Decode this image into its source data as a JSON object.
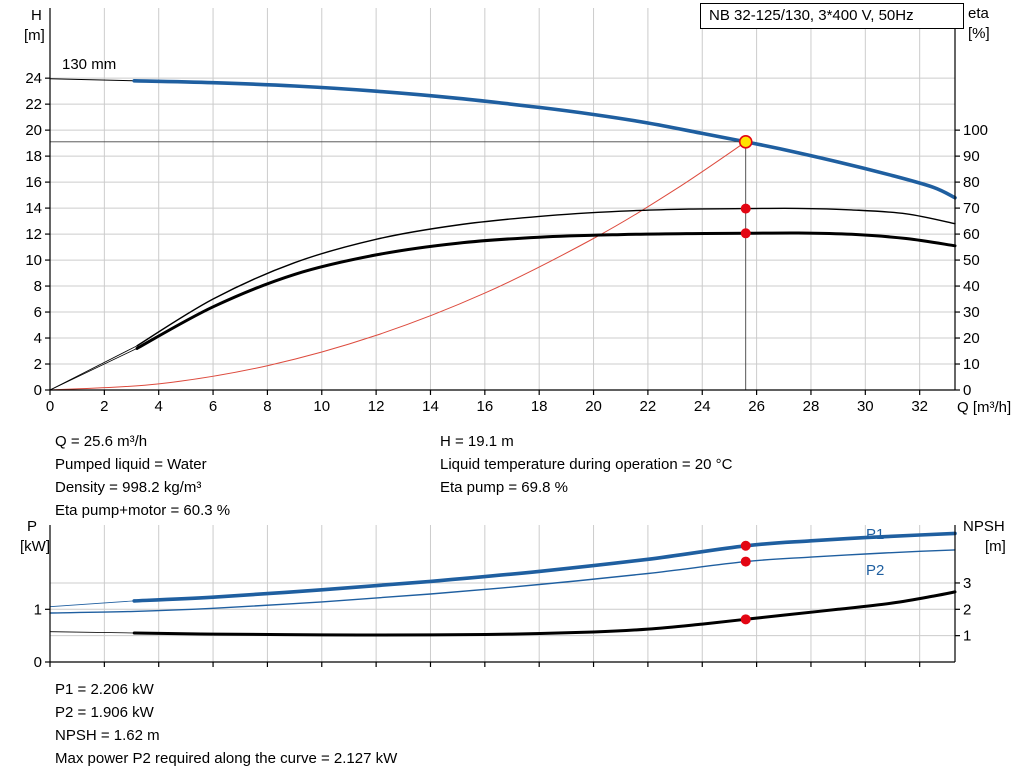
{
  "title_box": "NB 32-125/130, 3*400 V, 50Hz",
  "annotations": {
    "impeller": "130 mm",
    "p1": "P1",
    "p2": "P2"
  },
  "axes": {
    "top_left": [
      "H",
      "[m]"
    ],
    "top_right": [
      "eta",
      "[%]"
    ],
    "x": "Q [m³/h]",
    "bottom_left": [
      "P",
      "[kW]"
    ],
    "bottom_right": [
      "NPSH",
      "[m]"
    ]
  },
  "info_top": {
    "left": [
      "Q = 25.6 m³/h",
      "Pumped liquid = Water",
      "Density = 998.2 kg/m³",
      "Eta pump+motor = 60.3 %"
    ],
    "right": [
      "H = 19.1 m",
      "Liquid temperature during operation = 20 °C",
      "Eta pump = 69.8 %"
    ]
  },
  "info_bottom": [
    "P1 = 2.206 kW",
    "P2 = 1.906 kW",
    "NPSH = 1.62 m",
    "Max power P2 required along the curve = 2.127 kW"
  ],
  "colors": {
    "curve_blue": "#1f5fa0",
    "curve_black": "#000000",
    "marker_red": "#e30613",
    "marker_yellow": "#ffe400",
    "parabola_red": "#dd4b3e",
    "grid_gray": "#cccccc",
    "guide_gray": "#444444"
  },
  "chart_data": [
    {
      "id": "hq",
      "type": "line",
      "title": "NB 32-125/130, 3*400 V, 50Hz",
      "x_label": "Q [m³/h]",
      "y_left_label": "H [m]",
      "y_right_label": "eta [%]",
      "x_range": [
        0,
        33.3
      ],
      "y_left_range": [
        0,
        29.4
      ],
      "y_right_range": [
        0,
        147
      ],
      "x_ticks": [
        0,
        2,
        4,
        6,
        8,
        10,
        12,
        14,
        16,
        18,
        20,
        22,
        24,
        26,
        28,
        30,
        32
      ],
      "y_left_ticks": [
        0,
        2,
        4,
        6,
        8,
        10,
        12,
        14,
        16,
        18,
        20,
        22,
        24
      ],
      "y_right_ticks": [
        0,
        10,
        20,
        30,
        40,
        50,
        60,
        70,
        80,
        90,
        100
      ],
      "show_x_tick_labels": true,
      "grid_y_axis": "left",
      "series": [
        {
          "name": "pump-curve-leadin",
          "axis": "left",
          "color": "#000000",
          "width": 1,
          "smooth": false,
          "points": [
            [
              0,
              23.95
            ],
            [
              3.1,
              23.8
            ]
          ]
        },
        {
          "name": "pump-curve",
          "axis": "left",
          "color": "#1f5fa0",
          "width": 3.6,
          "smooth": true,
          "points": [
            [
              3.1,
              23.8
            ],
            [
              6,
              23.65
            ],
            [
              9,
              23.4
            ],
            [
              12,
              23.0
            ],
            [
              15,
              22.45
            ],
            [
              18,
              21.75
            ],
            [
              20,
              21.2
            ],
            [
              22,
              20.55
            ],
            [
              24,
              19.75
            ],
            [
              25.6,
              19.1
            ],
            [
              27,
              18.5
            ],
            [
              29,
              17.55
            ],
            [
              31,
              16.5
            ],
            [
              32.5,
              15.6
            ],
            [
              33.3,
              14.8
            ]
          ]
        },
        {
          "name": "affinity-parabola",
          "axis": "left",
          "color": "#dd4b3e",
          "width": 1,
          "smooth": true,
          "points": [
            [
              0,
              0
            ],
            [
              4,
              0.47
            ],
            [
              8,
              1.87
            ],
            [
              12,
              4.2
            ],
            [
              16,
              7.46
            ],
            [
              20,
              11.66
            ],
            [
              23,
              15.42
            ],
            [
              25.6,
              19.1
            ]
          ]
        },
        {
          "name": "eta-pump-leadin",
          "axis": "right",
          "color": "#000000",
          "width": 0.8,
          "smooth": false,
          "points": [
            [
              0,
              0
            ],
            [
              3.2,
              17
            ]
          ]
        },
        {
          "name": "eta-pump",
          "axis": "right",
          "color": "#000000",
          "width": 1.4,
          "smooth": true,
          "points": [
            [
              3.2,
              17
            ],
            [
              6,
              35
            ],
            [
              9,
              49
            ],
            [
              12,
              58
            ],
            [
              15,
              63.5
            ],
            [
              18,
              66.8
            ],
            [
              21,
              68.8
            ],
            [
              23.5,
              69.6
            ],
            [
              25.6,
              69.8
            ],
            [
              27.5,
              69.9
            ],
            [
              29.5,
              69.3
            ],
            [
              31.5,
              67.8
            ],
            [
              33.3,
              64
            ]
          ]
        },
        {
          "name": "eta-pump-motor-leadin",
          "axis": "right",
          "color": "#000000",
          "width": 0.8,
          "smooth": false,
          "points": [
            [
              0,
              0
            ],
            [
              3.2,
              16
            ]
          ]
        },
        {
          "name": "eta-pump-motor",
          "axis": "right",
          "color": "#000000",
          "width": 3,
          "smooth": true,
          "points": [
            [
              3.2,
              16
            ],
            [
              6,
              32
            ],
            [
              9,
              44.5
            ],
            [
              12,
              52
            ],
            [
              15,
              56.5
            ],
            [
              18,
              58.8
            ],
            [
              21,
              59.8
            ],
            [
              23.5,
              60.2
            ],
            [
              25.6,
              60.3
            ],
            [
              27.5,
              60.4
            ],
            [
              29.5,
              59.9
            ],
            [
              31.5,
              58.3
            ],
            [
              33.3,
              55.5
            ]
          ]
        },
        {
          "name": "duty-h-guide",
          "axis": "left",
          "color": "#444444",
          "width": 0.9,
          "smooth": false,
          "points": [
            [
              0,
              19.1
            ],
            [
              25.6,
              19.1
            ]
          ]
        },
        {
          "name": "duty-q-guide",
          "axis": "left",
          "color": "#444444",
          "width": 0.9,
          "smooth": false,
          "points": [
            [
              25.6,
              19.1
            ],
            [
              25.6,
              0
            ]
          ]
        }
      ],
      "markers": [
        {
          "name": "duty-point",
          "axis": "left",
          "x": 25.6,
          "y": 19.1,
          "r": 6,
          "fill": "#ffe400",
          "stroke": "#e30613",
          "stroke_width": 1.6
        },
        {
          "name": "eta-pump-point",
          "axis": "right",
          "x": 25.6,
          "y": 69.8,
          "r": 5,
          "fill": "#e30613"
        },
        {
          "name": "eta-pump-motor-point",
          "axis": "right",
          "x": 25.6,
          "y": 60.3,
          "r": 5,
          "fill": "#e30613"
        }
      ]
    },
    {
      "id": "power",
      "type": "line",
      "title": "",
      "x_label": "",
      "y_left_label": "P [kW]",
      "y_right_label": "NPSH [m]",
      "x_range": [
        0,
        33.3
      ],
      "y_left_range": [
        0,
        2.6
      ],
      "y_right_range": [
        0,
        5.2
      ],
      "x_ticks": [
        0,
        2,
        4,
        6,
        8,
        10,
        12,
        14,
        16,
        18,
        20,
        22,
        24,
        26,
        28,
        30,
        32
      ],
      "y_left_ticks": [
        0,
        1
      ],
      "y_right_ticks": [
        1,
        2,
        3
      ],
      "show_x_tick_labels": false,
      "grid_y_axis": "right",
      "series": [
        {
          "name": "p1-leadin",
          "axis": "left",
          "color": "#1f5fa0",
          "width": 0.8,
          "smooth": false,
          "points": [
            [
              0,
              1.05
            ],
            [
              3.1,
              1.16
            ]
          ]
        },
        {
          "name": "p1",
          "axis": "left",
          "color": "#1f5fa0",
          "width": 3.6,
          "smooth": true,
          "points": [
            [
              3.1,
              1.16
            ],
            [
              6,
              1.23
            ],
            [
              10,
              1.37
            ],
            [
              14,
              1.53
            ],
            [
              18,
              1.72
            ],
            [
              22,
              1.95
            ],
            [
              25.6,
              2.206
            ],
            [
              28,
              2.3
            ],
            [
              30,
              2.36
            ],
            [
              32,
              2.41
            ],
            [
              33.3,
              2.44
            ]
          ]
        },
        {
          "name": "p2",
          "axis": "left",
          "color": "#1f5fa0",
          "width": 1.4,
          "smooth": true,
          "points": [
            [
              0,
              0.93
            ],
            [
              3.1,
              0.96
            ],
            [
              6,
              1.02
            ],
            [
              10,
              1.14
            ],
            [
              14,
              1.29
            ],
            [
              18,
              1.47
            ],
            [
              22,
              1.68
            ],
            [
              25.6,
              1.906
            ],
            [
              28,
              1.99
            ],
            [
              30,
              2.05
            ],
            [
              32,
              2.1
            ],
            [
              33.3,
              2.127
            ]
          ]
        },
        {
          "name": "npsh-leadin",
          "axis": "right",
          "color": "#000000",
          "width": 0.8,
          "smooth": false,
          "points": [
            [
              0,
              1.15
            ],
            [
              3.1,
              1.1
            ]
          ]
        },
        {
          "name": "npsh",
          "axis": "right",
          "color": "#000000",
          "width": 3,
          "smooth": true,
          "points": [
            [
              3.1,
              1.1
            ],
            [
              6,
              1.06
            ],
            [
              10,
              1.03
            ],
            [
              14,
              1.03
            ],
            [
              17,
              1.06
            ],
            [
              20,
              1.14
            ],
            [
              22,
              1.25
            ],
            [
              24,
              1.44
            ],
            [
              25.6,
              1.62
            ],
            [
              27,
              1.78
            ],
            [
              29,
              2.0
            ],
            [
              31,
              2.24
            ],
            [
              32.5,
              2.5
            ],
            [
              33.3,
              2.66
            ]
          ]
        }
      ],
      "markers": [
        {
          "name": "p1-point",
          "axis": "left",
          "x": 25.6,
          "y": 2.206,
          "r": 5,
          "fill": "#e30613"
        },
        {
          "name": "p2-point",
          "axis": "left",
          "x": 25.6,
          "y": 1.906,
          "r": 5,
          "fill": "#e30613"
        },
        {
          "name": "npsh-point",
          "axis": "right",
          "x": 25.6,
          "y": 1.62,
          "r": 5,
          "fill": "#e30613"
        }
      ]
    }
  ]
}
